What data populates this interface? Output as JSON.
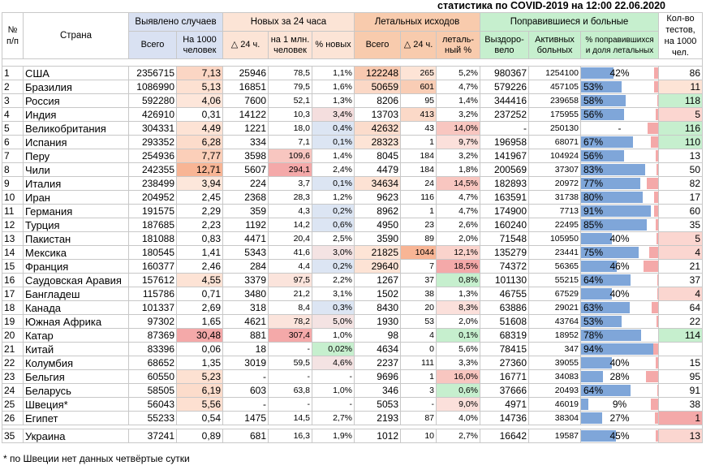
{
  "title": "статистика по COVID-2019 на 12:00 22.06.2020",
  "headers": {
    "num": "№ п/п",
    "country": "Страна",
    "group_detected": "Выявлено случаев",
    "group_new": "Новых за 24 часа",
    "group_deaths": "Летальных исходов",
    "group_recovered": "Поправившиеся и больные",
    "tests": "Кол-во тестов, на 1000 чел.",
    "total": "Всего",
    "per1000": "На 1000 человек",
    "d24": "△ 24 ч.",
    "per1m": "на 1 млн. человек",
    "pct_new": "% новых",
    "deaths_total": "Всего",
    "deaths_d24": "△ 24 ч.",
    "lethal_pct": "леталь-ный %",
    "recovered": "Выздоро-вело",
    "active": "Активных больных",
    "pct_rec": "% поправившихся и доля летальных"
  },
  "rows": [
    {
      "n": "1",
      "country": "США",
      "total": "2356715",
      "per1000": "7,13",
      "new": "25946",
      "per1m": "78,5",
      "pct_new": "1,1%",
      "deaths": "122248",
      "d24": "265",
      "lethal": "5,2%",
      "recovered": "980367",
      "active": "1254100",
      "rec_pct": "42%",
      "rec_frac": 0.42,
      "death_frac": 0.05,
      "tests": "86",
      "hl_per1000": "#fbd6c4",
      "hl_per1m": "",
      "hl_pctnew": "",
      "hl_deaths": "#f8c9b0",
      "hl_d24": "#fde4d6",
      "hl_lethal": "",
      "hl_tests": ""
    },
    {
      "n": "2",
      "country": "Бразилия",
      "total": "1086990",
      "per1000": "5,13",
      "new": "16851",
      "per1m": "79,5",
      "pct_new": "1,6%",
      "deaths": "50659",
      "d24": "601",
      "lethal": "4,7%",
      "recovered": "579226",
      "active": "457105",
      "rec_pct": "53%",
      "rec_frac": 0.53,
      "death_frac": 0.05,
      "tests": "11",
      "hl_per1000": "#fde1d2",
      "hl_per1m": "",
      "hl_pctnew": "",
      "hl_deaths": "#fbd8c6",
      "hl_d24": "#f9cdb5",
      "hl_lethal": "",
      "hl_tests": "#fde4d6"
    },
    {
      "n": "3",
      "country": "Россия",
      "total": "592280",
      "per1000": "4,06",
      "new": "7600",
      "per1m": "52,1",
      "pct_new": "1,3%",
      "deaths": "8206",
      "d24": "95",
      "lethal": "1,4%",
      "recovered": "344416",
      "active": "239658",
      "rec_pct": "58%",
      "rec_frac": 0.58,
      "death_frac": 0.01,
      "tests": "118",
      "hl_per1000": "#fde6da",
      "hl_per1m": "",
      "hl_pctnew": "",
      "hl_deaths": "",
      "hl_d24": "",
      "hl_lethal": "",
      "hl_tests": "#c6efce"
    },
    {
      "n": "4",
      "country": "Индия",
      "total": "426910",
      "per1000": "0,31",
      "new": "14122",
      "per1m": "10,3",
      "pct_new": "3,4%",
      "deaths": "13703",
      "d24": "413",
      "lethal": "3,2%",
      "recovered": "237252",
      "active": "175955",
      "rec_pct": "56%",
      "rec_frac": 0.56,
      "death_frac": 0.03,
      "tests": "5",
      "hl_per1000": "",
      "hl_per1m": "",
      "hl_pctnew": "#f4dede",
      "hl_deaths": "",
      "hl_d24": "#fbd9c8",
      "hl_lethal": "",
      "hl_tests": "#fbd6d0"
    },
    {
      "n": "5",
      "country": "Великобритания",
      "total": "304331",
      "per1000": "4,49",
      "new": "1221",
      "per1m": "18,0",
      "pct_new": "0,4%",
      "deaths": "42632",
      "d24": "43",
      "lethal": "14,0%",
      "recovered": "-",
      "active": "250130",
      "rec_pct": "-",
      "rec_frac": 0,
      "death_frac": 0.14,
      "tests": "116",
      "hl_per1000": "#fde3d5",
      "hl_per1m": "",
      "hl_pctnew": "#dce5f3",
      "hl_deaths": "#fbdccc",
      "hl_d24": "",
      "hl_lethal": "#f8c6c0",
      "hl_tests": "#c6efce"
    },
    {
      "n": "6",
      "country": "Испания",
      "total": "293352",
      "per1000": "6,28",
      "new": "334",
      "per1m": "7,1",
      "pct_new": "0,1%",
      "deaths": "28323",
      "d24": "1",
      "lethal": "9,7%",
      "recovered": "196958",
      "active": "68071",
      "rec_pct": "67%",
      "rec_frac": 0.67,
      "death_frac": 0.1,
      "tests": "110",
      "hl_per1000": "#fcdccb",
      "hl_per1m": "",
      "hl_pctnew": "#dce5f3",
      "hl_deaths": "#fde4d6",
      "hl_d24": "",
      "hl_lethal": "#fbe0db",
      "hl_tests": "#c6efce"
    },
    {
      "n": "7",
      "country": "Перу",
      "total": "254936",
      "per1000": "7,77",
      "new": "3598",
      "per1m": "109,6",
      "pct_new": "1,4%",
      "deaths": "8045",
      "d24": "184",
      "lethal": "3,2%",
      "recovered": "141967",
      "active": "104924",
      "rec_pct": "56%",
      "rec_frac": 0.56,
      "death_frac": 0.03,
      "tests": "13",
      "hl_per1000": "#fbcfb9",
      "hl_per1m": "#f8c6c0",
      "hl_pctnew": "",
      "hl_deaths": "",
      "hl_d24": "",
      "hl_lethal": "",
      "hl_tests": ""
    },
    {
      "n": "8",
      "country": "Чили",
      "total": "242355",
      "per1000": "12,71",
      "new": "5607",
      "per1m": "294,1",
      "pct_new": "2,4%",
      "deaths": "4479",
      "d24": "184",
      "lethal": "1,8%",
      "recovered": "200569",
      "active": "37307",
      "rec_pct": "83%",
      "rec_frac": 0.83,
      "death_frac": 0.02,
      "tests": "50",
      "hl_per1000": "#f8b595",
      "hl_per1m": "#f4a9a9",
      "hl_pctnew": "",
      "hl_deaths": "",
      "hl_d24": "",
      "hl_lethal": "",
      "hl_tests": ""
    },
    {
      "n": "9",
      "country": "Италия",
      "total": "238499",
      "per1000": "3,94",
      "new": "224",
      "per1m": "3,7",
      "pct_new": "0,1%",
      "deaths": "34634",
      "d24": "24",
      "lethal": "14,5%",
      "recovered": "182893",
      "active": "20972",
      "rec_pct": "77%",
      "rec_frac": 0.77,
      "death_frac": 0.145,
      "tests": "82",
      "hl_per1000": "#fde7db",
      "hl_per1m": "",
      "hl_pctnew": "#dce5f3",
      "hl_deaths": "#fde2d4",
      "hl_d24": "",
      "hl_lethal": "#f8c6c0",
      "hl_tests": ""
    },
    {
      "n": "10",
      "country": "Иран",
      "total": "204952",
      "per1000": "2,45",
      "new": "2368",
      "per1m": "28,3",
      "pct_new": "1,2%",
      "deaths": "9623",
      "d24": "116",
      "lethal": "4,7%",
      "recovered": "163591",
      "active": "31738",
      "rec_pct": "80%",
      "rec_frac": 0.8,
      "death_frac": 0.05,
      "tests": "17",
      "hl_per1000": "",
      "hl_per1m": "",
      "hl_pctnew": "",
      "hl_deaths": "",
      "hl_d24": "",
      "hl_lethal": "",
      "hl_tests": ""
    },
    {
      "n": "11",
      "country": "Германия",
      "total": "191575",
      "per1000": "2,29",
      "new": "359",
      "per1m": "4,3",
      "pct_new": "0,2%",
      "deaths": "8962",
      "d24": "1",
      "lethal": "4,7%",
      "recovered": "174900",
      "active": "7713",
      "rec_pct": "91%",
      "rec_frac": 0.91,
      "death_frac": 0.05,
      "tests": "60",
      "hl_per1000": "",
      "hl_per1m": "",
      "hl_pctnew": "#dce5f3",
      "hl_deaths": "",
      "hl_d24": "",
      "hl_lethal": "",
      "hl_tests": ""
    },
    {
      "n": "12",
      "country": "Турция",
      "total": "187685",
      "per1000": "2,23",
      "new": "1192",
      "per1m": "14,2",
      "pct_new": "0,6%",
      "deaths": "4950",
      "d24": "23",
      "lethal": "2,6%",
      "recovered": "160240",
      "active": "22495",
      "rec_pct": "85%",
      "rec_frac": 0.85,
      "death_frac": 0.03,
      "tests": "35",
      "hl_per1000": "",
      "hl_per1m": "",
      "hl_pctnew": "#dce5f3",
      "hl_deaths": "",
      "hl_d24": "",
      "hl_lethal": "",
      "hl_tests": ""
    },
    {
      "n": "13",
      "country": "Пакистан",
      "total": "181088",
      "per1000": "0,83",
      "new": "4471",
      "per1m": "20,4",
      "pct_new": "2,5%",
      "deaths": "3590",
      "d24": "89",
      "lethal": "2,0%",
      "recovered": "71548",
      "active": "105950",
      "rec_pct": "40%",
      "rec_frac": 0.4,
      "death_frac": 0.02,
      "tests": "5",
      "hl_per1000": "",
      "hl_per1m": "",
      "hl_pctnew": "",
      "hl_deaths": "",
      "hl_d24": "",
      "hl_lethal": "",
      "hl_tests": "#fbd6d0"
    },
    {
      "n": "14",
      "country": "Мексика",
      "total": "180545",
      "per1000": "1,41",
      "new": "5343",
      "per1m": "41,6",
      "pct_new": "3,0%",
      "deaths": "21825",
      "d24": "1044",
      "lethal": "12,1%",
      "recovered": "135279",
      "active": "23441",
      "rec_pct": "75%",
      "rec_frac": 0.75,
      "death_frac": 0.12,
      "tests": "4",
      "hl_per1000": "",
      "hl_per1m": "",
      "hl_pctnew": "#f4e3e3",
      "hl_deaths": "#fde4d6",
      "hl_d24": "#f8b595",
      "hl_lethal": "#fad3cc",
      "hl_tests": "#fbd6d0"
    },
    {
      "n": "15",
      "country": "Франция",
      "total": "160377",
      "per1000": "2,46",
      "new": "284",
      "per1m": "4,4",
      "pct_new": "0,2%",
      "deaths": "29640",
      "d24": "7",
      "lethal": "18,5%",
      "recovered": "74372",
      "active": "56365",
      "rec_pct": "46%",
      "rec_frac": 0.46,
      "death_frac": 0.185,
      "tests": "21",
      "hl_per1000": "",
      "hl_per1m": "",
      "hl_pctnew": "#dce5f3",
      "hl_deaths": "#fde3d5",
      "hl_d24": "",
      "hl_lethal": "#f4a9a9",
      "hl_tests": ""
    },
    {
      "n": "16",
      "country": "Саудовская Аравия",
      "total": "157612",
      "per1000": "4,55",
      "new": "3379",
      "per1m": "97,5",
      "pct_new": "2,2%",
      "deaths": "1267",
      "d24": "37",
      "lethal": "0,8%",
      "recovered": "101130",
      "active": "55215",
      "rec_pct": "64%",
      "rec_frac": 0.64,
      "death_frac": 0.01,
      "tests": "37",
      "hl_per1000": "#fde3d5",
      "hl_per1m": "#fbe4dc",
      "hl_pctnew": "",
      "hl_deaths": "",
      "hl_d24": "",
      "hl_lethal": "#c6efce",
      "hl_tests": ""
    },
    {
      "n": "17",
      "country": "Бангладеш",
      "total": "115786",
      "per1000": "0,71",
      "new": "3480",
      "per1m": "21,2",
      "pct_new": "3,1%",
      "deaths": "1502",
      "d24": "38",
      "lethal": "1,3%",
      "recovered": "46755",
      "active": "67529",
      "rec_pct": "40%",
      "rec_frac": 0.4,
      "death_frac": 0.01,
      "tests": "4",
      "hl_per1000": "",
      "hl_per1m": "",
      "hl_pctnew": "",
      "hl_deaths": "",
      "hl_d24": "",
      "hl_lethal": "",
      "hl_tests": "#fbd6d0"
    },
    {
      "n": "18",
      "country": "Канада",
      "total": "101337",
      "per1000": "2,69",
      "new": "318",
      "per1m": "8,4",
      "pct_new": "0,3%",
      "deaths": "8430",
      "d24": "20",
      "lethal": "8,3%",
      "recovered": "63886",
      "active": "29021",
      "rec_pct": "63%",
      "rec_frac": 0.63,
      "death_frac": 0.08,
      "tests": "64",
      "hl_per1000": "",
      "hl_per1m": "",
      "hl_pctnew": "#dce5f3",
      "hl_deaths": "",
      "hl_d24": "",
      "hl_lethal": "#fbe0db",
      "hl_tests": ""
    },
    {
      "n": "19",
      "country": "Южная Африка",
      "total": "97302",
      "per1000": "1,65",
      "new": "4621",
      "per1m": "78,2",
      "pct_new": "5,0%",
      "deaths": "1930",
      "d24": "53",
      "lethal": "2,0%",
      "recovered": "51608",
      "active": "43764",
      "rec_pct": "53%",
      "rec_frac": 0.53,
      "death_frac": 0.02,
      "tests": "22",
      "hl_per1000": "",
      "hl_per1m": "#fbe4dc",
      "hl_pctnew": "#f4e3e3",
      "hl_deaths": "",
      "hl_d24": "",
      "hl_lethal": "",
      "hl_tests": ""
    },
    {
      "n": "20",
      "country": "Катар",
      "total": "87369",
      "per1000": "30,48",
      "new": "881",
      "per1m": "307,4",
      "pct_new": "1,0%",
      "deaths": "98",
      "d24": "4",
      "lethal": "0,1%",
      "recovered": "68319",
      "active": "18952",
      "rec_pct": "78%",
      "rec_frac": 0.78,
      "death_frac": 0.001,
      "tests": "114",
      "hl_per1000": "#f4a9a9",
      "hl_per1m": "#f4a9a9",
      "hl_pctnew": "",
      "hl_deaths": "",
      "hl_d24": "",
      "hl_lethal": "#c6efce",
      "hl_tests": "#c6efce"
    },
    {
      "n": "21",
      "country": "Китай",
      "total": "83396",
      "per1000": "0,06",
      "new": "18",
      "per1m": "-",
      "pct_new": "0,02%",
      "deaths": "4634",
      "d24": "0",
      "lethal": "5,6%",
      "recovered": "78415",
      "active": "347",
      "rec_pct": "94%",
      "rec_frac": 0.94,
      "death_frac": 0.06,
      "tests": "",
      "hl_per1000": "",
      "hl_per1m": "",
      "hl_pctnew": "#c6efce",
      "hl_deaths": "",
      "hl_d24": "",
      "hl_lethal": "",
      "hl_tests": ""
    },
    {
      "n": "22",
      "country": "Колумбия",
      "total": "68652",
      "per1000": "1,35",
      "new": "3019",
      "per1m": "59,5",
      "pct_new": "4,6%",
      "deaths": "2237",
      "d24": "111",
      "lethal": "3,3%",
      "recovered": "27360",
      "active": "39055",
      "rec_pct": "40%",
      "rec_frac": 0.4,
      "death_frac": 0.03,
      "tests": "15",
      "hl_per1000": "",
      "hl_per1m": "",
      "hl_pctnew": "#f4e3e3",
      "hl_deaths": "",
      "hl_d24": "",
      "hl_lethal": "",
      "hl_tests": ""
    },
    {
      "n": "23",
      "country": "Бельгия",
      "total": "60550",
      "per1000": "5,23",
      "new": "-",
      "per1m": "-",
      "pct_new": "-",
      "deaths": "9696",
      "d24": "1",
      "lethal": "16,0%",
      "recovered": "16771",
      "active": "34083",
      "rec_pct": "28%",
      "rec_frac": 0.28,
      "death_frac": 0.16,
      "tests": "95",
      "hl_per1000": "#fde1d2",
      "hl_per1m": "",
      "hl_pctnew": "",
      "hl_deaths": "",
      "hl_d24": "",
      "hl_lethal": "#f8c6c0",
      "hl_tests": ""
    },
    {
      "n": "24",
      "country": "Беларусь",
      "total": "58505",
      "per1000": "6,19",
      "new": "603",
      "per1m": "63,8",
      "pct_new": "1,0%",
      "deaths": "346",
      "d24": "3",
      "lethal": "0,6%",
      "recovered": "37666",
      "active": "20493",
      "rec_pct": "64%",
      "rec_frac": 0.64,
      "death_frac": 0.006,
      "tests": "91",
      "hl_per1000": "#fcdccb",
      "hl_per1m": "",
      "hl_pctnew": "",
      "hl_deaths": "",
      "hl_d24": "",
      "hl_lethal": "#c6efce",
      "hl_tests": ""
    },
    {
      "n": "25",
      "country": "Швеция*",
      "total": "56043",
      "per1000": "5,56",
      "new": "-",
      "per1m": "-",
      "pct_new": "-",
      "deaths": "5053",
      "d24": "-",
      "lethal": "9,0%",
      "recovered": "4971",
      "active": "46019",
      "rec_pct": "9%",
      "rec_frac": 0.09,
      "death_frac": 0.09,
      "tests": "38",
      "hl_per1000": "#fde0d1",
      "hl_per1m": "",
      "hl_pctnew": "",
      "hl_deaths": "",
      "hl_d24": "",
      "hl_lethal": "#fbe0db",
      "hl_tests": ""
    },
    {
      "n": "26",
      "country": "Египет",
      "total": "55233",
      "per1000": "0,54",
      "new": "1475",
      "per1m": "14,5",
      "pct_new": "2,7%",
      "deaths": "2193",
      "d24": "87",
      "lethal": "4,0%",
      "recovered": "14736",
      "active": "38304",
      "rec_pct": "27%",
      "rec_frac": 0.27,
      "death_frac": 0.04,
      "tests": "1",
      "hl_per1000": "",
      "hl_per1m": "",
      "hl_pctnew": "",
      "hl_deaths": "",
      "hl_d24": "",
      "hl_lethal": "",
      "hl_tests": "#f4a9a9"
    }
  ],
  "ukraine": {
    "n": "35",
    "country": "Украина",
    "total": "37241",
    "per1000": "0,89",
    "new": "681",
    "per1m": "16,3",
    "pct_new": "1,9%",
    "deaths": "1012",
    "d24": "10",
    "lethal": "2,7%",
    "recovered": "16642",
    "active": "19587",
    "rec_pct": "45%",
    "rec_frac": 0.45,
    "death_frac": 0.03,
    "tests": "13",
    "hl_per1000": "",
    "hl_per1m": "",
    "hl_pctnew": "",
    "hl_deaths": "",
    "hl_d24": "",
    "hl_lethal": "",
    "hl_tests": "#fbd6d0"
  },
  "footnote": "* по Швеции нет данных четвёртые сутки"
}
